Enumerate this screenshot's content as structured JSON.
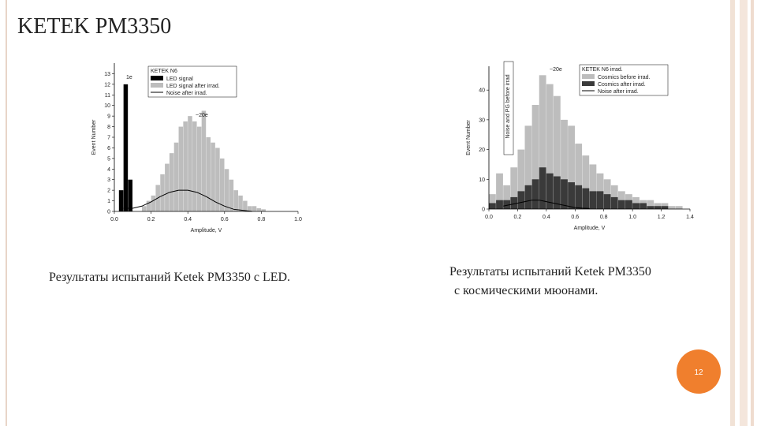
{
  "title": "KETEK PM3350",
  "charts": [
    {
      "type": "histogram",
      "xlabel": "Amplitude, V",
      "ylabel": "Event Number",
      "legend_title": "KETEK N6",
      "annotations": [
        "1e",
        "~20e"
      ],
      "xlim": [
        0,
        1
      ],
      "ylim": [
        0,
        14
      ],
      "xticks": [
        {
          "value": 0,
          "label": "0.0"
        },
        {
          "value": 0.2,
          "label": "0.2"
        },
        {
          "value": 0.4,
          "label": "0.4"
        },
        {
          "value": 0.6,
          "label": "0.6"
        },
        {
          "value": 0.8,
          "label": "0.8"
        },
        {
          "value": 1,
          "label": "1.0"
        }
      ],
      "yticks": [
        0,
        1,
        2,
        3,
        4,
        5,
        6,
        7,
        8,
        9,
        10,
        11,
        12,
        13
      ],
      "bins": [
        0,
        0.025,
        0.05,
        0.075,
        0.1,
        0.125,
        0.15,
        0.175,
        0.2,
        0.225,
        0.25,
        0.275,
        0.3,
        0.325,
        0.35,
        0.375,
        0.4,
        0.425,
        0.45,
        0.475,
        0.5,
        0.525,
        0.55,
        0.575,
        0.6,
        0.625,
        0.65,
        0.675,
        0.7,
        0.725,
        0.75,
        0.775,
        0.8,
        0.825,
        0.85,
        0.875,
        0.9,
        0.925,
        0.95,
        0.975,
        1
      ],
      "series": [
        {
          "name": "LED signal",
          "kind": "bar",
          "color": "#000000",
          "values": [
            0,
            2,
            12,
            3,
            0,
            0,
            0,
            0,
            0,
            0,
            0,
            0,
            0,
            0,
            0,
            0,
            0,
            0,
            0,
            0,
            0,
            0,
            0,
            0,
            0,
            0,
            0,
            0,
            0,
            0,
            0,
            0,
            0,
            0,
            0,
            0,
            0,
            0,
            0,
            0
          ]
        },
        {
          "name": "LED signal after irrad.",
          "kind": "bar",
          "color": "#bdbdbd",
          "values": [
            0,
            0,
            0,
            0,
            0,
            0,
            0.5,
            1,
            1.5,
            2.5,
            3.5,
            4.5,
            5.5,
            6.5,
            8,
            8.5,
            9,
            8.5,
            8,
            9.5,
            7,
            6.5,
            6,
            5,
            4,
            3,
            2,
            1.5,
            1,
            0.5,
            0.5,
            0.3,
            0.2,
            0,
            0,
            0,
            0,
            0,
            0,
            0
          ]
        },
        {
          "name": "Noise after irrad.",
          "kind": "line",
          "color": "#000000",
          "x": [
            0.05,
            0.1,
            0.15,
            0.2,
            0.25,
            0.3,
            0.35,
            0.4,
            0.45,
            0.5,
            0.55,
            0.6,
            0.65,
            0.7,
            0.75
          ],
          "values": [
            0.3,
            0.3,
            0.5,
            0.9,
            1.4,
            1.8,
            2,
            2,
            1.8,
            1.4,
            0.9,
            0.5,
            0.2,
            0.1,
            0
          ]
        }
      ]
    },
    {
      "type": "histogram",
      "xlabel": "Amplitude, V",
      "ylabel": "Event Number",
      "legend_title": "KETEK N6 irrad.",
      "annotations": [
        "~20e",
        "Noise and PG before irrad"
      ],
      "xlim": [
        0,
        1.4
      ],
      "ylim": [
        0,
        48
      ],
      "xticks": [
        {
          "value": 0,
          "label": "0.0"
        },
        {
          "value": 0.2,
          "label": "0.2"
        },
        {
          "value": 0.4,
          "label": "0.4"
        },
        {
          "value": 0.6,
          "label": "0.6"
        },
        {
          "value": 0.8,
          "label": "0.8"
        },
        {
          "value": 1,
          "label": "1.0"
        },
        {
          "value": 1.2,
          "label": "1.2"
        },
        {
          "value": 1.4,
          "label": "1.4"
        }
      ],
      "yticks": [
        0,
        10,
        20,
        30,
        40
      ],
      "bins": [
        0,
        0.05,
        0.1,
        0.15,
        0.2,
        0.25,
        0.3,
        0.35,
        0.4,
        0.45,
        0.5,
        0.55,
        0.6,
        0.65,
        0.7,
        0.75,
        0.8,
        0.85,
        0.9,
        0.95,
        1,
        1.05,
        1.1,
        1.15,
        1.2,
        1.25,
        1.3,
        1.35,
        1.4
      ],
      "series": [
        {
          "name": "Cosmics before irrad.",
          "kind": "bar",
          "color": "#bdbdbd",
          "values": [
            5,
            12,
            8,
            14,
            20,
            28,
            35,
            45,
            42,
            38,
            30,
            28,
            22,
            18,
            15,
            12,
            10,
            8,
            6,
            5,
            4,
            3,
            3,
            2,
            2,
            1,
            1,
            0
          ]
        },
        {
          "name": "Cosmics after irrad.",
          "kind": "bar",
          "color": "#3a3a3a",
          "values": [
            2,
            3,
            3,
            4,
            6,
            8,
            10,
            14,
            12,
            11,
            10,
            9,
            8,
            7,
            6,
            6,
            5,
            4,
            3,
            3,
            2,
            2,
            1,
            1,
            1,
            0,
            0,
            0
          ]
        },
        {
          "name": "Noise after irrad.",
          "kind": "line",
          "color": "#000000",
          "x": [
            0.1,
            0.15,
            0.2,
            0.25,
            0.3,
            0.35,
            0.4,
            0.45,
            0.5,
            0.55,
            0.6,
            0.65,
            0.7
          ],
          "values": [
            1,
            1.5,
            2,
            2.5,
            3,
            3,
            2.5,
            2,
            1.5,
            1,
            0.5,
            0.3,
            0.2
          ]
        }
      ]
    }
  ],
  "caption_left": "Результаты испытаний Ketek PM3350 с LED.",
  "caption_right": [
    "Результаты испытаний Ketek PM3350",
    "с космическими мюонами."
  ],
  "page_number": "12"
}
